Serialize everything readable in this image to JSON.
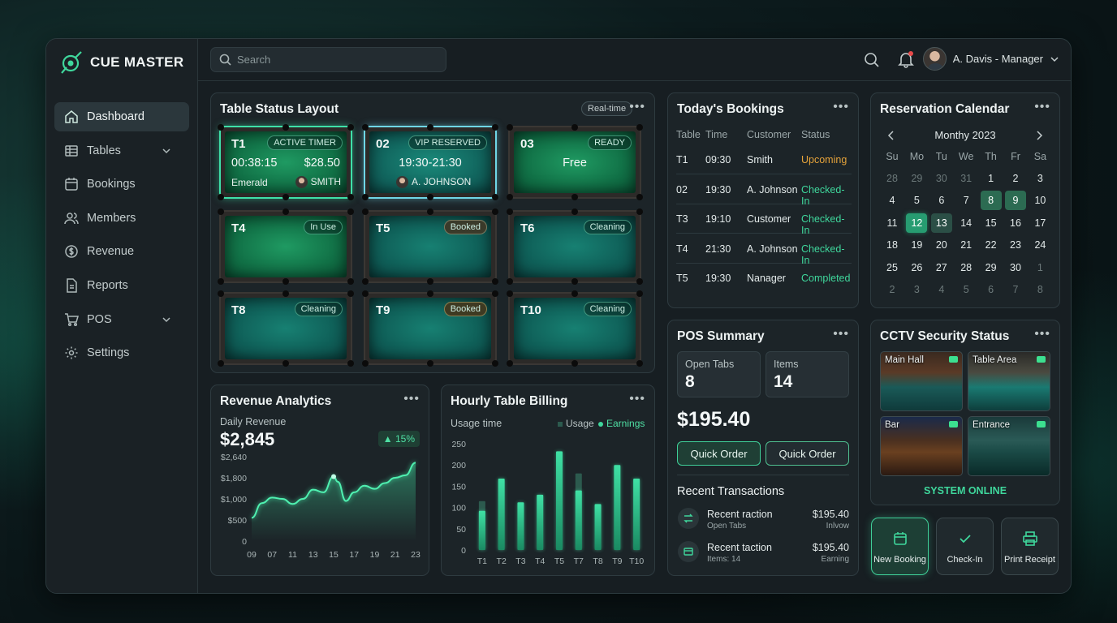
{
  "app": {
    "name": "CUE MASTER"
  },
  "search": {
    "placeholder": "Search"
  },
  "user": {
    "name": "A. Davis - Manager"
  },
  "nav": [
    {
      "label": "Dashboard",
      "icon": "home-icon",
      "active": true
    },
    {
      "label": "Tables",
      "icon": "grid-icon",
      "expandable": true
    },
    {
      "label": "Bookings",
      "icon": "calendar-icon"
    },
    {
      "label": "Members",
      "icon": "users-icon"
    },
    {
      "label": "Revenue",
      "icon": "dollar-icon"
    },
    {
      "label": "Reports",
      "icon": "report-icon"
    },
    {
      "label": "POS",
      "icon": "cart-icon",
      "expandable": true
    },
    {
      "label": "Settings",
      "icon": "gear-icon"
    }
  ],
  "table_status": {
    "title": "Table Status Layout",
    "badge": "Real-time",
    "tables": [
      {
        "id": "T1",
        "status": "ACTIVE TIMER",
        "timer": "00:38:15",
        "amount": "$28.50",
        "felt": "Emerald",
        "player": "SMITH"
      },
      {
        "id": "02",
        "status": "VIP RESERVED",
        "time": "19:30-21:30",
        "player": "A. JOHNSON"
      },
      {
        "id": "03",
        "status": "READY",
        "info": "Free"
      },
      {
        "id": "T4",
        "status": "In Use"
      },
      {
        "id": "T5",
        "status": "Booked"
      },
      {
        "id": "T6",
        "status": "Cleaning"
      },
      {
        "id": "T8",
        "status": "Cleaning"
      },
      {
        "id": "T9",
        "status": "Booked"
      },
      {
        "id": "T10",
        "status": "Cleaning"
      }
    ]
  },
  "bookings": {
    "title": "Today's Bookings",
    "headers": [
      "Table",
      "Time",
      "Customer",
      "Status"
    ],
    "rows": [
      {
        "table": "T1",
        "time": "09:30",
        "customer": "Smith",
        "status": "Upcoming"
      },
      {
        "table": "02",
        "time": "19:30",
        "customer": "A. Johnson",
        "status": "Checked-In"
      },
      {
        "table": "T3",
        "time": "19:10",
        "customer": "Customer",
        "status": "Checked-In"
      },
      {
        "table": "T4",
        "time": "21:30",
        "customer": "A. Johnson",
        "status": "Checked-In"
      },
      {
        "table": "T5",
        "time": "19:30",
        "customer": "Nanager",
        "status": "Completed"
      }
    ]
  },
  "calendar": {
    "title": "Reservation Calendar",
    "month": "Monthy 2023",
    "dows": [
      "Su",
      "Mo",
      "Tu",
      "We",
      "Th",
      "Fr",
      "Sa"
    ],
    "weeks": [
      [
        "28",
        "29",
        "30",
        "31",
        "1",
        "2",
        "3"
      ],
      [
        "4",
        "5",
        "6",
        "7",
        "8",
        "9",
        "10"
      ],
      [
        "11",
        "12",
        "13",
        "14",
        "15",
        "16",
        "17"
      ],
      [
        "18",
        "19",
        "20",
        "21",
        "22",
        "23",
        "24"
      ],
      [
        "25",
        "26",
        "27",
        "28",
        "29",
        "30",
        "1"
      ],
      [
        "2",
        "3",
        "4",
        "5",
        "6",
        "7",
        "8"
      ]
    ]
  },
  "revenue": {
    "title": "Revenue Analytics",
    "subtitle": "Daily Revenue",
    "value": "$2,845",
    "change": "15%",
    "chart_data": {
      "type": "area",
      "x": [
        "09",
        "07",
        "11",
        "13",
        "15",
        "17",
        "19",
        "21",
        "23"
      ],
      "y_ticks": [
        "0",
        "$500",
        "$1,000",
        "$1,800",
        "$2,640"
      ],
      "points": [
        [
          0,
          550
        ],
        [
          0.5,
          900
        ],
        [
          1,
          1050
        ],
        [
          1.5,
          1000
        ],
        [
          2,
          880
        ],
        [
          2.5,
          1000
        ],
        [
          3,
          1350
        ],
        [
          3.5,
          1250
        ],
        [
          4,
          1850
        ],
        [
          4.2,
          1650
        ],
        [
          4.6,
          950
        ],
        [
          5,
          1250
        ],
        [
          5.5,
          1500
        ],
        [
          6,
          1380
        ],
        [
          6.5,
          1600
        ],
        [
          7,
          1800
        ],
        [
          7.5,
          1900
        ],
        [
          8,
          2400
        ]
      ]
    }
  },
  "hourly": {
    "title": "Hourly Table Billing",
    "subtitle": "Usage time",
    "legend": [
      "Usage",
      "Earnings"
    ],
    "chart_data": {
      "type": "bar",
      "categories": [
        "T1",
        "T2",
        "T3",
        "T4",
        "T5",
        "T7",
        "T8",
        "T9",
        "T10"
      ],
      "y_ticks": [
        "0",
        "50",
        "100",
        "150",
        "200",
        "250"
      ],
      "ylim": [
        0,
        250
      ],
      "series": [
        {
          "name": "Usage",
          "values": [
            115,
            0,
            0,
            0,
            0,
            180,
            0,
            0,
            0
          ]
        },
        {
          "name": "Earnings",
          "values": [
            92,
            168,
            112,
            130,
            232,
            140,
            108,
            200,
            168
          ]
        }
      ]
    }
  },
  "pos": {
    "title": "POS Summary",
    "open_tabs_label": "Open Tabs",
    "open_tabs": "8",
    "items_label": "Items",
    "items": "14",
    "total": "$195.40",
    "btn1": "Quick Order",
    "btn2": "Quick Order",
    "recent_title": "Recent Transactions",
    "transactions": [
      {
        "title": "Recent raction",
        "sub": "Open Tabs",
        "amount": "$195.40",
        "note": "Inlvow"
      },
      {
        "title": "Recent taction",
        "sub": "Items: 14",
        "amount": "$195.40",
        "note": "Earning"
      }
    ]
  },
  "cctv": {
    "title": "CCTV Security Status",
    "cams": [
      "Main Hall",
      "Table Area",
      "Bar",
      "Entrance"
    ],
    "status": "SYSTEM ONLINE"
  },
  "actions": [
    "New Booking",
    "Check-In",
    "Print Receipt"
  ],
  "colors": {
    "accent": "#3fd79c",
    "upcoming": "#e6a33a",
    "checked": "#3fd79c"
  }
}
